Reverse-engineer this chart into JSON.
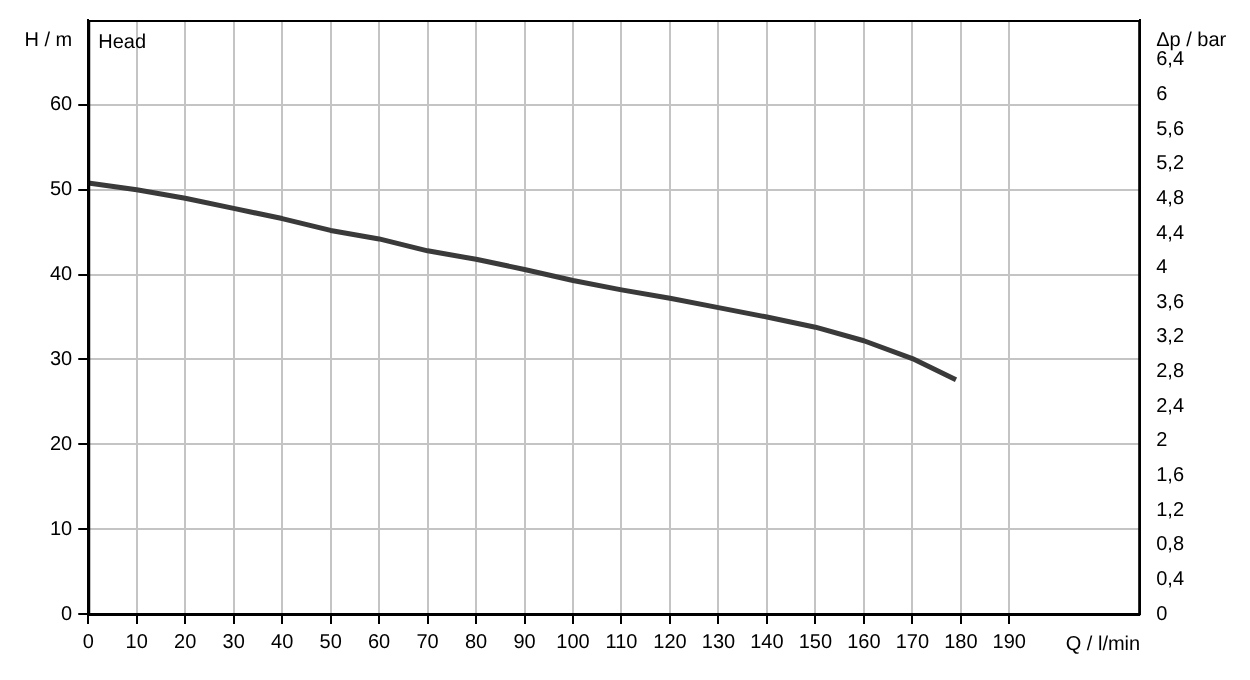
{
  "chart_data": {
    "type": "line",
    "title": "Head",
    "xlabel": "Q / l/min",
    "ylabel": "H / m",
    "y2label": "Δp / bar",
    "x": [
      0,
      10,
      20,
      30,
      40,
      50,
      60,
      70,
      80,
      90,
      100,
      110,
      120,
      130,
      140,
      150,
      160,
      170,
      179
    ],
    "series": [
      {
        "color": "#3a3a3a",
        "values": [
          50.8,
          50.0,
          49.0,
          47.8,
          46.6,
          45.2,
          44.2,
          42.8,
          41.8,
          40.6,
          39.3,
          38.2,
          37.2,
          36.1,
          35.0,
          33.8,
          32.2,
          30.1,
          27.6
        ]
      }
    ],
    "xlim": [
      0,
      217
    ],
    "xticks": [
      0,
      10,
      20,
      30,
      40,
      50,
      60,
      70,
      80,
      90,
      100,
      110,
      120,
      130,
      140,
      150,
      160,
      170,
      180,
      190
    ],
    "ylim": [
      0,
      70
    ],
    "yticks": [
      0,
      10,
      20,
      30,
      40,
      50,
      60
    ],
    "y2lim": [
      0,
      6.86
    ],
    "y2ticks": [
      0,
      {
        "value": 0.4,
        "label": "0,4"
      },
      {
        "value": 0.8,
        "label": "0,8"
      },
      {
        "value": 1.2,
        "label": "1,2"
      },
      {
        "value": 1.6,
        "label": "1,6"
      },
      2,
      {
        "value": 2.4,
        "label": "2,4"
      },
      {
        "value": 2.8,
        "label": "2,8"
      },
      {
        "value": 3.2,
        "label": "3,2"
      },
      {
        "value": 3.6,
        "label": "3,6"
      },
      4,
      {
        "value": 4.4,
        "label": "4,4"
      },
      {
        "value": 4.8,
        "label": "4,8"
      },
      {
        "value": 5.2,
        "label": "5,2"
      },
      {
        "value": 5.6,
        "label": "5,6"
      },
      6,
      {
        "value": 6.4,
        "label": "6,4"
      }
    ],
    "grid": true,
    "marker": "none",
    "line_style": "solid"
  }
}
